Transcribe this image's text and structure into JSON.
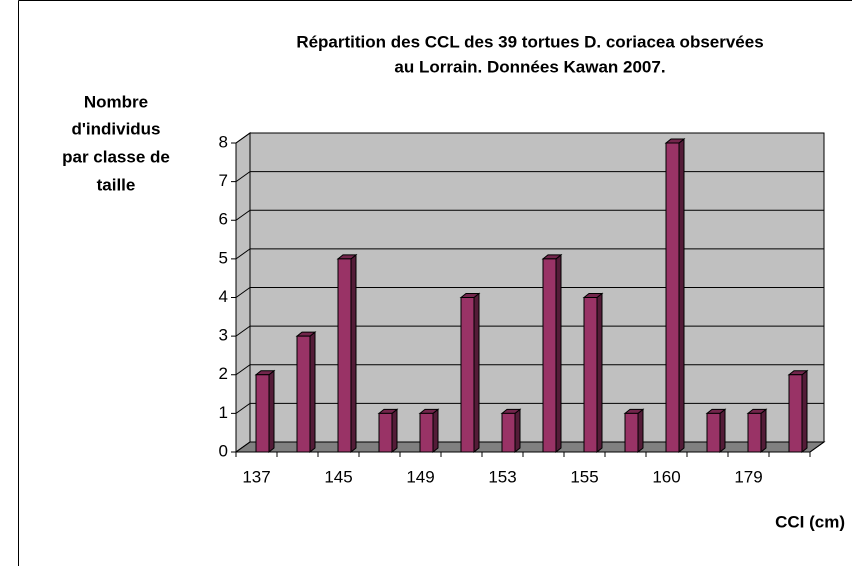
{
  "chart_data": {
    "type": "bar3d",
    "title": [
      "Répartition des CCL des 39 tortues D. coriacea observées",
      "au Lorrain. Données Kawan 2007."
    ],
    "ylabel": [
      "Nombre",
      "d'individus",
      "par classe de",
      "taille"
    ],
    "xlabel": "CCI (cm)",
    "categories": [
      "137",
      null,
      "145",
      null,
      "149",
      null,
      "153",
      null,
      "155",
      null,
      "160",
      null,
      "179",
      null
    ],
    "values": [
      2,
      3,
      5,
      1,
      1,
      4,
      1,
      5,
      4,
      1,
      8,
      1,
      1,
      2
    ],
    "color": "#993366",
    "ylim": [
      0,
      8
    ],
    "yticks": [
      0,
      1,
      2,
      3,
      4,
      5,
      6,
      7,
      8
    ],
    "grid": true
  }
}
